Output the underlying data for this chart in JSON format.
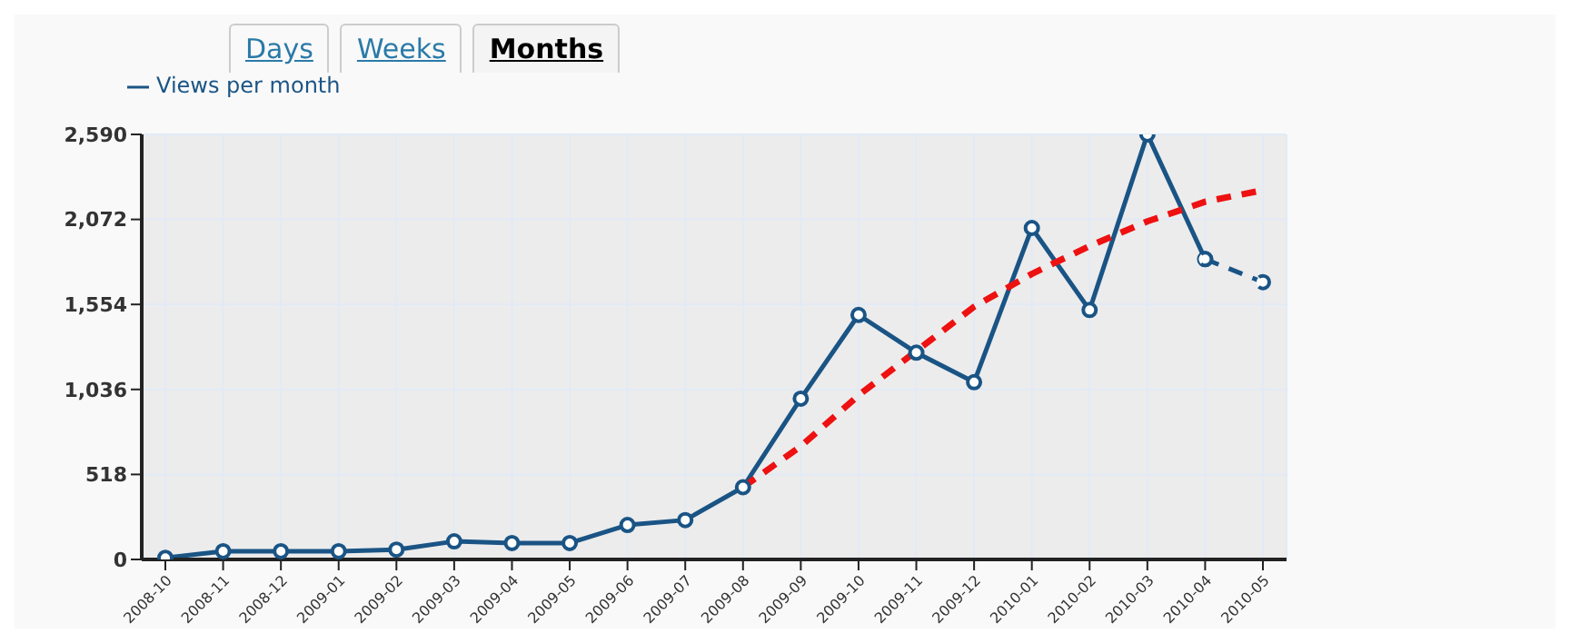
{
  "chart_data": {
    "type": "line",
    "annotations": [
      "Days",
      "Weeks",
      "Months"
    ],
    "categories": [
      "2008-10",
      "2008-11",
      "2008-12",
      "2009-01",
      "2009-02",
      "2009-03",
      "2009-04",
      "2009-05",
      "2009-06",
      "2009-07",
      "2009-08",
      "2009-09",
      "2009-10",
      "2009-11",
      "2009-12",
      "2010-01",
      "2010-02",
      "2010-03",
      "2010-04",
      "2010-05"
    ],
    "series": [
      {
        "name": "Views per month",
        "color": "#1a5485",
        "marker": "circle",
        "line_style": "solid",
        "values": [
          10,
          50,
          50,
          50,
          60,
          110,
          100,
          100,
          210,
          240,
          440,
          980,
          1490,
          1260,
          1080,
          2020,
          1520,
          2590,
          1830,
          null
        ]
      },
      {
        "color": "#1a5485",
        "marker": "circle",
        "line_style": "dashed",
        "values": [
          null,
          null,
          null,
          null,
          null,
          null,
          null,
          null,
          null,
          null,
          null,
          null,
          null,
          null,
          null,
          null,
          null,
          null,
          1830,
          1690
        ]
      },
      {
        "color": "#ee1111",
        "marker": "none",
        "line_style": "dashed",
        "values": [
          null,
          null,
          null,
          null,
          null,
          null,
          null,
          null,
          null,
          null,
          440,
          690,
          1000,
          1270,
          1540,
          1740,
          1910,
          2060,
          2180,
          2250
        ]
      }
    ],
    "ylim": [
      0,
      2590
    ],
    "yticks": [
      {
        "value": 0,
        "label": "0"
      },
      {
        "value": 518,
        "label": "518"
      },
      {
        "value": 1036,
        "label": "1,036"
      },
      {
        "value": 1554,
        "label": "1,554"
      },
      {
        "value": 2072,
        "label": "2,072"
      },
      {
        "value": 2590,
        "label": "2,590"
      }
    ],
    "grid": true,
    "legend": "top left"
  }
}
